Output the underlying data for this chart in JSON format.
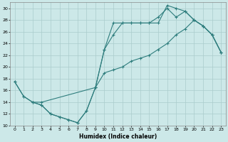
{
  "xlabel": "Humidex (Indice chaleur)",
  "background_color": "#cce8e8",
  "grid_color": "#aacccc",
  "line_color": "#2e7d7d",
  "xlim": [
    -0.5,
    23.5
  ],
  "ylim": [
    10,
    31
  ],
  "xticks": [
    0,
    1,
    2,
    3,
    4,
    5,
    6,
    7,
    8,
    9,
    10,
    11,
    12,
    13,
    14,
    15,
    16,
    17,
    18,
    19,
    20,
    21,
    22,
    23
  ],
  "yticks": [
    10,
    12,
    14,
    16,
    18,
    20,
    22,
    24,
    26,
    28,
    30
  ],
  "line1_x": [
    0,
    1,
    2,
    3,
    4,
    5,
    6,
    7,
    8,
    9,
    10,
    11,
    12,
    13,
    14,
    15,
    16,
    17,
    18,
    19,
    20,
    21,
    22,
    23
  ],
  "line1_y": [
    17.5,
    15.0,
    14.0,
    13.5,
    12.0,
    11.5,
    11.0,
    10.5,
    12.5,
    16.5,
    23.0,
    27.5,
    27.5,
    27.5,
    27.5,
    27.5,
    27.5,
    30.5,
    30.0,
    29.5,
    28.0,
    27.0,
    25.5,
    22.5
  ],
  "line2_x": [
    2,
    3,
    4,
    5,
    6,
    7,
    8,
    9,
    10,
    11,
    12,
    13,
    14,
    15,
    16,
    17,
    18,
    19,
    20,
    21,
    22,
    23
  ],
  "line2_y": [
    14.0,
    13.5,
    12.0,
    11.5,
    11.0,
    10.5,
    12.5,
    16.5,
    23.0,
    25.5,
    27.5,
    27.5,
    27.5,
    27.5,
    28.5,
    30.0,
    28.5,
    29.5,
    28.0,
    27.0,
    25.5,
    22.5
  ],
  "line3_x": [
    0,
    1,
    2,
    3,
    9,
    10,
    11,
    12,
    13,
    14,
    15,
    16,
    17,
    18,
    19,
    20,
    21,
    22,
    23
  ],
  "line3_y": [
    17.5,
    15.0,
    14.0,
    14.0,
    16.5,
    19.0,
    19.5,
    20.0,
    21.0,
    21.5,
    22.0,
    23.0,
    24.0,
    25.5,
    26.5,
    28.0,
    27.0,
    25.5,
    22.5
  ]
}
